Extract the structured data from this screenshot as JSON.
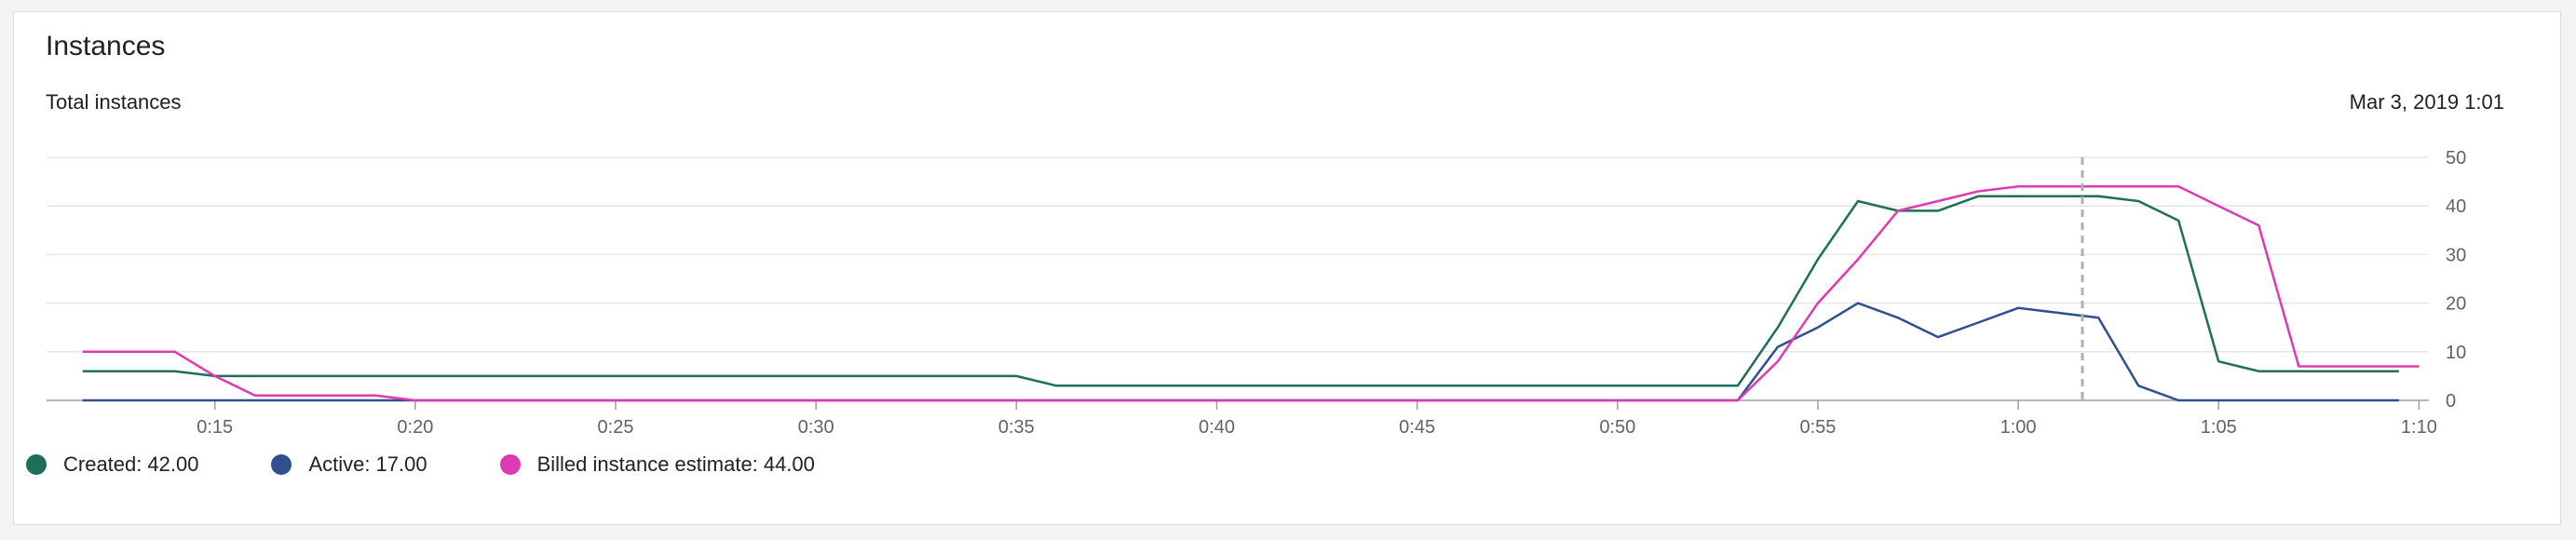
{
  "card": {
    "title": "Instances",
    "subtitle": "Total instances",
    "timestamp": "Mar 3, 2019 1:01"
  },
  "legend": [
    {
      "name": "Created",
      "value": "42.00",
      "color": "#1e6e5a"
    },
    {
      "name": "Active",
      "value": "17.00",
      "color": "#2f4f8f"
    },
    {
      "name": "Billed instance estimate",
      "value": "44.00",
      "color": "#e03ab0"
    }
  ],
  "chart_data": {
    "type": "line",
    "y_ticks": [
      "0",
      "10",
      "20",
      "30",
      "40",
      "50"
    ],
    "ylim": [
      0,
      50
    ],
    "x_ticks": [
      "0:15",
      "0:20",
      "0:25",
      "0:30",
      "0:35",
      "0:40",
      "0:45",
      "0:50",
      "0:55",
      "1:00",
      "1:05",
      "1:10"
    ],
    "xlim_minutes": [
      10.8,
      70.2
    ],
    "cursor_minute": 61.6,
    "grid": "horizontal",
    "legend_position": "bottom-left",
    "series": [
      {
        "name": "Created",
        "color": "#1e6e5a",
        "points": [
          [
            11.7,
            6
          ],
          [
            14,
            6
          ],
          [
            15,
            5
          ],
          [
            35,
            5
          ],
          [
            36,
            3
          ],
          [
            53,
            3
          ],
          [
            54,
            15
          ],
          [
            55,
            29
          ],
          [
            56,
            41
          ],
          [
            57,
            39
          ],
          [
            58,
            39
          ],
          [
            59,
            42
          ],
          [
            62,
            42
          ],
          [
            63,
            41
          ],
          [
            64,
            37
          ],
          [
            65,
            8
          ],
          [
            66,
            6
          ],
          [
            69.5,
            6
          ]
        ]
      },
      {
        "name": "Active",
        "color": "#2f4f8f",
        "points": [
          [
            11.7,
            0
          ],
          [
            53,
            0
          ],
          [
            54,
            11
          ],
          [
            55,
            15
          ],
          [
            56,
            20
          ],
          [
            57,
            17
          ],
          [
            58,
            13
          ],
          [
            59,
            16
          ],
          [
            60,
            19
          ],
          [
            61,
            18
          ],
          [
            62,
            17
          ],
          [
            63,
            3
          ],
          [
            64,
            0
          ],
          [
            69.5,
            0
          ]
        ]
      },
      {
        "name": "Billed instance estimate",
        "color": "#e03ab0",
        "points": [
          [
            11.7,
            10
          ],
          [
            14,
            10
          ],
          [
            15,
            5
          ],
          [
            16,
            1
          ],
          [
            19,
            1
          ],
          [
            20,
            0
          ],
          [
            53,
            0
          ],
          [
            54,
            8
          ],
          [
            55,
            20
          ],
          [
            56,
            29
          ],
          [
            57,
            39
          ],
          [
            58,
            41
          ],
          [
            59,
            43
          ],
          [
            60,
            44
          ],
          [
            64,
            44
          ],
          [
            65,
            40
          ],
          [
            66,
            36
          ],
          [
            67,
            7
          ],
          [
            70,
            7
          ]
        ]
      }
    ]
  }
}
